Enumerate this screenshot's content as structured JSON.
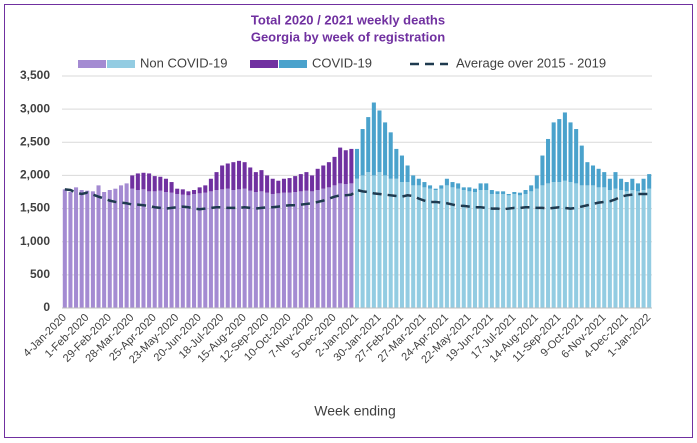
{
  "chart_data": {
    "type": "bar",
    "stacked": true,
    "title": "Total 2020 / 2021 weekly deaths",
    "subtitle": "Georgia by week of registration",
    "x_label": "Week ending",
    "categories": [
      "4-Jan-2020",
      null,
      null,
      null,
      "1-Feb-2020",
      null,
      null,
      null,
      "29-Feb-2020",
      null,
      null,
      null,
      "28-Mar-2020",
      null,
      null,
      null,
      "25-Apr-2020",
      null,
      null,
      null,
      "23-May-2020",
      null,
      null,
      null,
      "20-Jun-2020",
      null,
      null,
      null,
      "18-Jul-2020",
      null,
      null,
      null,
      "15-Aug-2020",
      null,
      null,
      null,
      "12-Sep-2020",
      null,
      null,
      null,
      "10-Oct-2020",
      null,
      null,
      null,
      "7-Nov-2020",
      null,
      null,
      null,
      "5-Dec-2020",
      null,
      null,
      null,
      "2-Jan-2021",
      null,
      null,
      null,
      "30-Jan-2021",
      null,
      null,
      null,
      "27-Feb-2021",
      null,
      null,
      null,
      "27-Mar-2021",
      null,
      null,
      null,
      "24-Apr-2021",
      null,
      null,
      null,
      "22-May-2021",
      null,
      null,
      null,
      "19-Jun-2021",
      null,
      null,
      null,
      "17-Jul-2021",
      null,
      null,
      null,
      "14-Aug-2021",
      null,
      null,
      null,
      "11-Sep-2021",
      null,
      null,
      null,
      "9-Oct-2021",
      null,
      null,
      null,
      "6-Nov-2021",
      null,
      null,
      null,
      "4-Dec-2021",
      null,
      null,
      null,
      "1-Jan-2022"
    ],
    "series": [
      {
        "name": "Non COVID-19",
        "type": "bar",
        "values": [
          1790,
          1750,
          1820,
          1780,
          1770,
          1760,
          1850,
          1750,
          1780,
          1800,
          1850,
          1880,
          1800,
          1780,
          1790,
          1760,
          1760,
          1770,
          1750,
          1740,
          1720,
          1710,
          1700,
          1720,
          1730,
          1740,
          1760,
          1780,
          1790,
          1800,
          1780,
          1790,
          1800,
          1770,
          1750,
          1760,
          1740,
          1720,
          1730,
          1740,
          1740,
          1750,
          1760,
          1770,
          1760,
          1780,
          1800,
          1820,
          1850,
          1880,
          1870,
          1880,
          1950,
          2000,
          2050,
          2000,
          2050,
          2000,
          1950,
          1950,
          1900,
          1900,
          1850,
          1850,
          1820,
          1800,
          1780,
          1800,
          1850,
          1820,
          1800,
          1780,
          1760,
          1750,
          1780,
          1780,
          1720,
          1720,
          1720,
          1700,
          1720,
          1700,
          1720,
          1760,
          1800,
          1850,
          1880,
          1900,
          1900,
          1920,
          1900,
          1880,
          1850,
          1850,
          1850,
          1820,
          1820,
          1780,
          1800,
          1780,
          1760,
          1780,
          1760,
          1780,
          1800
        ],
        "colors": [
          "#a48bd2",
          "#a48bd2",
          "#a48bd2",
          "#a48bd2",
          "#a48bd2",
          "#a48bd2",
          "#a48bd2",
          "#a48bd2",
          "#a48bd2",
          "#a48bd2",
          "#a48bd2",
          "#a48bd2",
          "#a48bd2",
          "#a48bd2",
          "#a48bd2",
          "#a48bd2",
          "#a48bd2",
          "#a48bd2",
          "#a48bd2",
          "#a48bd2",
          "#a48bd2",
          "#a48bd2",
          "#a48bd2",
          "#a48bd2",
          "#a48bd2",
          "#a48bd2",
          "#a48bd2",
          "#a48bd2",
          "#a48bd2",
          "#a48bd2",
          "#a48bd2",
          "#a48bd2",
          "#a48bd2",
          "#a48bd2",
          "#a48bd2",
          "#a48bd2",
          "#a48bd2",
          "#a48bd2",
          "#a48bd2",
          "#a48bd2",
          "#a48bd2",
          "#a48bd2",
          "#a48bd2",
          "#a48bd2",
          "#a48bd2",
          "#a48bd2",
          "#a48bd2",
          "#a48bd2",
          "#a48bd2",
          "#a48bd2",
          "#a48bd2",
          "#a48bd2",
          "#93cce2",
          "#93cce2",
          "#93cce2",
          "#93cce2",
          "#93cce2",
          "#93cce2",
          "#93cce2",
          "#93cce2",
          "#93cce2",
          "#93cce2",
          "#93cce2",
          "#93cce2",
          "#93cce2",
          "#93cce2",
          "#93cce2",
          "#93cce2",
          "#93cce2",
          "#93cce2",
          "#93cce2",
          "#93cce2",
          "#93cce2",
          "#93cce2",
          "#93cce2",
          "#93cce2",
          "#93cce2",
          "#93cce2",
          "#93cce2",
          "#93cce2",
          "#93cce2",
          "#93cce2",
          "#93cce2",
          "#93cce2",
          "#93cce2",
          "#93cce2",
          "#93cce2",
          "#93cce2",
          "#93cce2",
          "#93cce2",
          "#93cce2",
          "#93cce2",
          "#93cce2",
          "#93cce2",
          "#93cce2",
          "#93cce2",
          "#93cce2",
          "#93cce2",
          "#93cce2",
          "#93cce2",
          "#93cce2",
          "#93cce2",
          "#93cce2",
          "#93cce2",
          "#93cce2"
        ]
      },
      {
        "name": "COVID-19",
        "type": "bar",
        "values": [
          0,
          0,
          0,
          0,
          0,
          0,
          0,
          0,
          0,
          0,
          0,
          0,
          200,
          250,
          250,
          270,
          230,
          210,
          200,
          160,
          80,
          80,
          60,
          60,
          90,
          110,
          190,
          270,
          360,
          380,
          420,
          430,
          400,
          350,
          300,
          320,
          260,
          230,
          190,
          210,
          220,
          240,
          260,
          280,
          240,
          320,
          350,
          380,
          430,
          540,
          510,
          520,
          450,
          700,
          830,
          1100,
          930,
          800,
          700,
          450,
          400,
          250,
          150,
          100,
          80,
          50,
          20,
          50,
          100,
          80,
          80,
          40,
          60,
          50,
          100,
          100,
          60,
          40,
          40,
          20,
          30,
          40,
          60,
          90,
          200,
          450,
          670,
          900,
          950,
          1030,
          900,
          820,
          600,
          350,
          300,
          280,
          230,
          170,
          250,
          170,
          140,
          170,
          120,
          170,
          220
        ],
        "colors": [
          "#7030a0",
          "#7030a0",
          "#7030a0",
          "#7030a0",
          "#7030a0",
          "#7030a0",
          "#7030a0",
          "#7030a0",
          "#7030a0",
          "#7030a0",
          "#7030a0",
          "#7030a0",
          "#7030a0",
          "#7030a0",
          "#7030a0",
          "#7030a0",
          "#7030a0",
          "#7030a0",
          "#7030a0",
          "#7030a0",
          "#7030a0",
          "#7030a0",
          "#7030a0",
          "#7030a0",
          "#7030a0",
          "#7030a0",
          "#7030a0",
          "#7030a0",
          "#7030a0",
          "#7030a0",
          "#7030a0",
          "#7030a0",
          "#7030a0",
          "#7030a0",
          "#7030a0",
          "#7030a0",
          "#7030a0",
          "#7030a0",
          "#7030a0",
          "#7030a0",
          "#7030a0",
          "#7030a0",
          "#7030a0",
          "#7030a0",
          "#7030a0",
          "#7030a0",
          "#7030a0",
          "#7030a0",
          "#7030a0",
          "#7030a0",
          "#7030a0",
          "#7030a0",
          "#4aa2cc",
          "#4aa2cc",
          "#4aa2cc",
          "#4aa2cc",
          "#4aa2cc",
          "#4aa2cc",
          "#4aa2cc",
          "#4aa2cc",
          "#4aa2cc",
          "#4aa2cc",
          "#4aa2cc",
          "#4aa2cc",
          "#4aa2cc",
          "#4aa2cc",
          "#4aa2cc",
          "#4aa2cc",
          "#4aa2cc",
          "#4aa2cc",
          "#4aa2cc",
          "#4aa2cc",
          "#4aa2cc",
          "#4aa2cc",
          "#4aa2cc",
          "#4aa2cc",
          "#4aa2cc",
          "#4aa2cc",
          "#4aa2cc",
          "#4aa2cc",
          "#4aa2cc",
          "#4aa2cc",
          "#4aa2cc",
          "#4aa2cc",
          "#4aa2cc",
          "#4aa2cc",
          "#4aa2cc",
          "#4aa2cc",
          "#4aa2cc",
          "#4aa2cc",
          "#4aa2cc",
          "#4aa2cc",
          "#4aa2cc",
          "#4aa2cc",
          "#4aa2cc",
          "#4aa2cc",
          "#4aa2cc",
          "#4aa2cc",
          "#4aa2cc",
          "#4aa2cc",
          "#4aa2cc",
          "#4aa2cc",
          "#4aa2cc",
          "#4aa2cc",
          "#4aa2cc"
        ]
      },
      {
        "name": "Average over 2015 - 2019",
        "type": "line",
        "dashed": true,
        "color": "#1f3a4f",
        "values": [
          1790,
          1780,
          1740,
          1720,
          1740,
          1710,
          1680,
          1650,
          1620,
          1600,
          1590,
          1580,
          1560,
          1560,
          1550,
          1540,
          1520,
          1510,
          1500,
          1510,
          1520,
          1530,
          1520,
          1500,
          1490,
          1500,
          1510,
          1520,
          1520,
          1510,
          1510,
          1510,
          1520,
          1510,
          1500,
          1510,
          1520,
          1520,
          1530,
          1540,
          1550,
          1550,
          1560,
          1570,
          1580,
          1600,
          1620,
          1650,
          1680,
          1700,
          1700,
          1710,
          1780,
          1760,
          1750,
          1730,
          1720,
          1710,
          1700,
          1690,
          1680,
          1700,
          1690,
          1650,
          1620,
          1600,
          1600,
          1590,
          1580,
          1560,
          1540,
          1540,
          1530,
          1520,
          1520,
          1510,
          1500,
          1500,
          1490,
          1500,
          1510,
          1510,
          1520,
          1520,
          1510,
          1510,
          1500,
          1510,
          1520,
          1510,
          1500,
          1510,
          1530,
          1550,
          1570,
          1590,
          1600,
          1610,
          1640,
          1680,
          1700,
          1710,
          1720,
          1720,
          1720
        ]
      }
    ],
    "ylim": [
      0,
      3500
    ],
    "yticks": [
      0,
      500,
      {
        "value": 1000,
        "label": "1,000"
      },
      {
        "value": 1500,
        "label": "1,500"
      },
      {
        "value": 2000,
        "label": "2,000"
      },
      {
        "value": 2500,
        "label": "2,500"
      },
      {
        "value": 3000,
        "label": "3,000"
      },
      {
        "value": 3500,
        "label": "3,500"
      }
    ],
    "grid": true,
    "legend": "top"
  }
}
